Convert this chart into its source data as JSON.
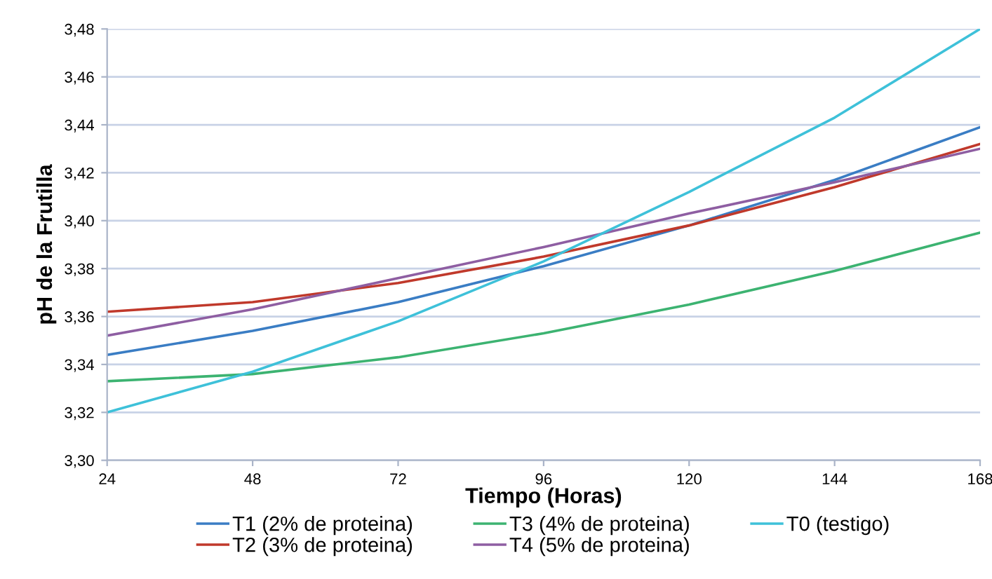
{
  "chart_data": {
    "type": "line",
    "xlabel": "Tiempo (Horas)",
    "ylabel": "pH de la Frutilla",
    "x": [
      24,
      48,
      72,
      96,
      120,
      144,
      168
    ],
    "series": [
      {
        "name": "T1 (2% de proteina)",
        "color": "#3a7dc4",
        "values": [
          3.344,
          3.354,
          3.366,
          3.381,
          3.398,
          3.417,
          3.439
        ]
      },
      {
        "name": "T2 (3% de proteina)",
        "color": "#c0392b",
        "values": [
          3.362,
          3.366,
          3.374,
          3.385,
          3.398,
          3.414,
          3.432
        ]
      },
      {
        "name": "T3 (4% de proteina)",
        "color": "#3cb371",
        "values": [
          3.333,
          3.336,
          3.343,
          3.353,
          3.365,
          3.379,
          3.395
        ]
      },
      {
        "name": "T4 (5% de proteina)",
        "color": "#8e5ea2",
        "values": [
          3.352,
          3.363,
          3.376,
          3.389,
          3.403,
          3.416,
          3.43
        ]
      },
      {
        "name": "T0 (testigo)",
        "color": "#3ec1d9",
        "values": [
          3.32,
          3.337,
          3.358,
          3.383,
          3.412,
          3.443,
          3.48
        ]
      }
    ],
    "xlim": [
      24,
      168
    ],
    "xticks": [
      24,
      48,
      72,
      96,
      120,
      144,
      168
    ],
    "ylim": [
      3.3,
      3.48
    ],
    "yticks": [
      {
        "value": 3.3,
        "label": "3,30"
      },
      {
        "value": 3.32,
        "label": "3,32"
      },
      {
        "value": 3.34,
        "label": "3,34"
      },
      {
        "value": 3.36,
        "label": "3,36"
      },
      {
        "value": 3.38,
        "label": "3,38"
      },
      {
        "value": 3.4,
        "label": "3,40"
      },
      {
        "value": 3.42,
        "label": "3,42"
      },
      {
        "value": 3.44,
        "label": "3,44"
      },
      {
        "value": 3.46,
        "label": "3,46"
      },
      {
        "value": 3.48,
        "label": "3,48"
      }
    ],
    "grid": "y",
    "legend": "bottom",
    "marker": "none",
    "line_style": "solid"
  }
}
